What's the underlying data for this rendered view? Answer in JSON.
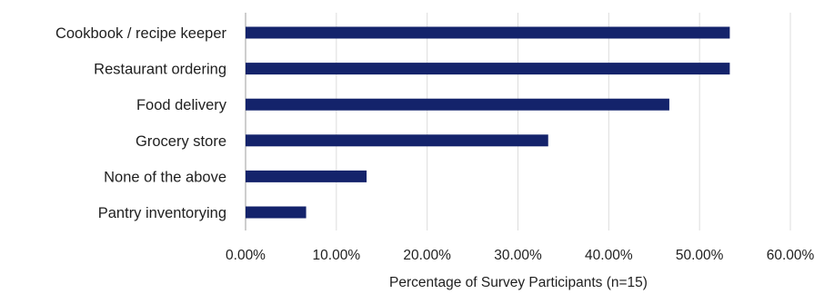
{
  "chart_data": {
    "type": "bar",
    "orientation": "horizontal",
    "categories": [
      "Cookbook / recipe keeper",
      "Restaurant ordering",
      "Food delivery",
      "Grocery store",
      "None of the above",
      "Pantry inventorying"
    ],
    "values": [
      53.33,
      53.33,
      46.67,
      33.33,
      13.33,
      6.67
    ],
    "xlabel": "Percentage of Survey Participants (n=15)",
    "ylabel": "",
    "xlim": [
      0,
      60
    ],
    "ticks": [
      "0.00%",
      "10.00%",
      "20.00%",
      "30.00%",
      "40.00%",
      "50.00%",
      "60.00%"
    ],
    "grid": "vertical",
    "legend": "none",
    "bar_color": "#14236b"
  }
}
